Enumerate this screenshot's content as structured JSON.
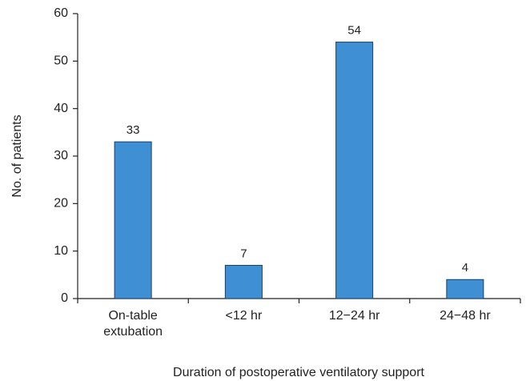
{
  "chart_data": {
    "type": "bar",
    "xlabel": "Duration of postoperative ventilatory support",
    "ylabel": "No. of patients",
    "categories": [
      "On-table extubation",
      "<12 hr",
      "12−24 hr",
      "24−48 hr"
    ],
    "values": [
      33,
      7,
      54,
      4
    ],
    "color": "#3f8fd4",
    "ylim": [
      0,
      60
    ],
    "yticks": [
      0,
      10,
      20,
      30,
      40,
      50,
      60
    ],
    "grid": false
  }
}
